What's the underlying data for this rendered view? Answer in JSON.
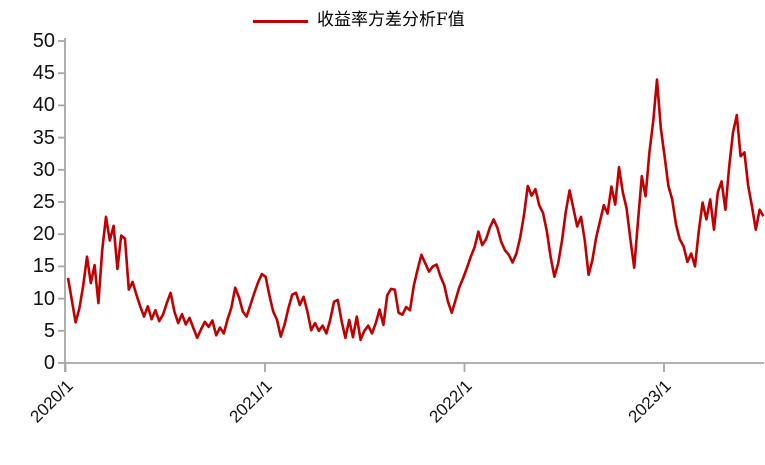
{
  "legend": {
    "label": "收益率方差分析F值",
    "line_color": "#C00000"
  },
  "axis": {
    "line_color": "#A6A6A6",
    "label_color": "#111111"
  },
  "chart_data": {
    "type": "line",
    "title": "",
    "series_name": "收益率方差分析F值",
    "line_color": "#C00000",
    "frequency": "weekly",
    "x_start": "2020/1",
    "x_end": "2023/6",
    "x_tick_labels": [
      "2020/1",
      "2021/1",
      "2022/1",
      "2023/1"
    ],
    "y_tick_labels": [
      "0",
      "5",
      "10",
      "15",
      "20",
      "25",
      "30",
      "35",
      "40",
      "45",
      "50"
    ],
    "ylim": [
      0,
      50
    ],
    "grid": false,
    "legend_position": "top-center",
    "values": [
      13.2,
      9.8,
      6.3,
      8.5,
      12.0,
      16.5,
      12.4,
      15.2,
      9.3,
      17.5,
      22.7,
      19.0,
      21.3,
      14.6,
      19.8,
      19.3,
      11.4,
      12.6,
      10.6,
      8.8,
      7.2,
      8.8,
      6.8,
      8.2,
      6.5,
      7.5,
      9.3,
      10.9,
      8.0,
      6.2,
      7.6,
      6.0,
      7.0,
      5.4,
      3.9,
      5.2,
      6.4,
      5.6,
      6.6,
      4.3,
      5.5,
      4.6,
      6.8,
      8.6,
      11.7,
      10.2,
      8.0,
      7.2,
      9.0,
      10.8,
      12.5,
      13.8,
      13.4,
      10.5,
      8.0,
      6.7,
      4.1,
      6.0,
      8.5,
      10.6,
      10.9,
      9.0,
      10.3,
      8.0,
      5.1,
      6.2,
      5.0,
      5.8,
      4.6,
      6.7,
      9.5,
      9.8,
      6.5,
      3.9,
      6.7,
      4.0,
      7.2,
      3.6,
      5.0,
      5.8,
      4.6,
      6.2,
      8.3,
      5.9,
      10.5,
      11.5,
      11.4,
      7.8,
      7.5,
      8.7,
      8.2,
      12.0,
      14.5,
      16.8,
      15.5,
      14.2,
      15.0,
      15.3,
      13.5,
      12.1,
      9.5,
      7.8,
      9.8,
      11.8,
      13.2,
      14.8,
      16.5,
      18.0,
      20.4,
      18.3,
      19.2,
      21.0,
      22.3,
      21.0,
      18.8,
      17.5,
      16.8,
      15.6,
      17.0,
      19.5,
      23.0,
      27.5,
      26.0,
      27.0,
      24.5,
      23.3,
      20.5,
      16.5,
      13.4,
      15.5,
      19.0,
      23.5,
      26.8,
      24.0,
      21.2,
      22.7,
      19.0,
      13.7,
      16.0,
      19.5,
      22.0,
      24.5,
      23.2,
      27.4,
      24.6,
      30.4,
      26.5,
      24.0,
      19.2,
      14.8,
      22.0,
      29.0,
      25.9,
      32.7,
      37.5,
      44.0,
      36.5,
      32.1,
      27.5,
      25.4,
      21.5,
      19.2,
      18.1,
      15.7,
      17.0,
      15.0,
      20.5,
      24.9,
      22.3,
      25.4,
      20.7,
      26.5,
      28.2,
      23.8,
      30.5,
      35.8,
      38.5,
      32.1,
      32.7,
      27.5,
      24.3,
      20.7,
      23.8,
      22.8
    ]
  }
}
